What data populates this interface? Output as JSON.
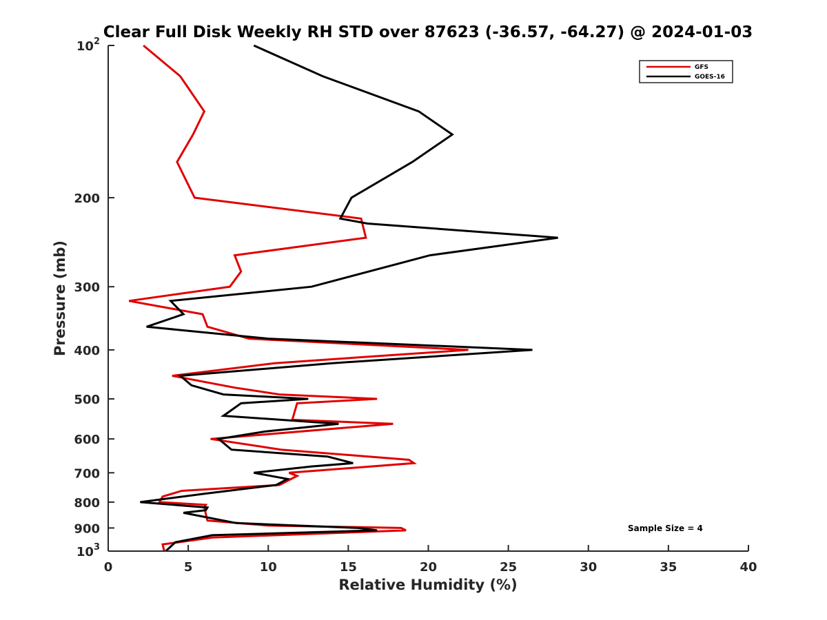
{
  "chart_data": {
    "type": "line",
    "title": "Clear Full Disk Weekly RH STD over 87623 (-36.57, -64.27) @ 2024-01-03",
    "xlabel": "Relative Humidity (%)",
    "ylabel": "Pressure (mb)",
    "xlim": [
      0,
      40
    ],
    "ylim": [
      100,
      1000
    ],
    "y_scale": "log",
    "y_reversed": true,
    "x_ticks": [
      "0",
      "5",
      "10",
      "15",
      "20",
      "25",
      "30",
      "35",
      "40"
    ],
    "y_ticks": [
      {
        "value": 100,
        "label": "10",
        "sup": "2"
      },
      {
        "value": 200,
        "label": "200"
      },
      {
        "value": 300,
        "label": "300"
      },
      {
        "value": 400,
        "label": "400"
      },
      {
        "value": 500,
        "label": "500"
      },
      {
        "value": 600,
        "label": "600"
      },
      {
        "value": 700,
        "label": "700"
      },
      {
        "value": 800,
        "label": "800"
      },
      {
        "value": 900,
        "label": "900"
      },
      {
        "value": 1000,
        "label": "10",
        "sup": "3"
      }
    ],
    "grid": false,
    "legend_position": "top-right",
    "series": [
      {
        "name": "GFS",
        "color": "#e00000",
        "points": [
          [
            2.2,
            100
          ],
          [
            4.5,
            115
          ],
          [
            6.0,
            135
          ],
          [
            5.3,
            150
          ],
          [
            4.3,
            170
          ],
          [
            5.4,
            200
          ],
          [
            15.8,
            220
          ],
          [
            16.1,
            240
          ],
          [
            7.9,
            260
          ],
          [
            8.3,
            280
          ],
          [
            7.6,
            300
          ],
          [
            1.3,
            320
          ],
          [
            5.9,
            340
          ],
          [
            6.2,
            360
          ],
          [
            8.8,
            380
          ],
          [
            22.5,
            400
          ],
          [
            10.4,
            425
          ],
          [
            4.0,
            450
          ],
          [
            7.9,
            475
          ],
          [
            10.7,
            490
          ],
          [
            16.8,
            500
          ],
          [
            11.8,
            510
          ],
          [
            11.5,
            550
          ],
          [
            17.8,
            560
          ],
          [
            6.4,
            600
          ],
          [
            10.8,
            630
          ],
          [
            18.8,
            660
          ],
          [
            19.1,
            670
          ],
          [
            11.3,
            700
          ],
          [
            11.8,
            710
          ],
          [
            10.7,
            740
          ],
          [
            4.6,
            760
          ],
          [
            3.4,
            780
          ],
          [
            3.2,
            800
          ],
          [
            6.1,
            810
          ],
          [
            6.0,
            820
          ],
          [
            6.2,
            870
          ],
          [
            10.0,
            890
          ],
          [
            18.3,
            900
          ],
          [
            18.6,
            910
          ],
          [
            6.5,
            940
          ],
          [
            3.4,
            970
          ],
          [
            3.5,
            1000
          ]
        ]
      },
      {
        "name": "GOES-16",
        "color": "#000000",
        "points": [
          [
            9.1,
            100
          ],
          [
            13.4,
            115
          ],
          [
            19.4,
            135
          ],
          [
            21.5,
            150
          ],
          [
            19.0,
            170
          ],
          [
            15.2,
            200
          ],
          [
            14.5,
            220
          ],
          [
            16.2,
            225
          ],
          [
            28.1,
            240
          ],
          [
            20.1,
            260
          ],
          [
            12.7,
            300
          ],
          [
            3.9,
            320
          ],
          [
            4.7,
            340
          ],
          [
            2.4,
            360
          ],
          [
            10.0,
            380
          ],
          [
            26.5,
            400
          ],
          [
            14.0,
            425
          ],
          [
            4.5,
            450
          ],
          [
            5.2,
            470
          ],
          [
            7.2,
            490
          ],
          [
            12.5,
            500
          ],
          [
            8.3,
            510
          ],
          [
            7.2,
            540
          ],
          [
            14.4,
            560
          ],
          [
            9.8,
            580
          ],
          [
            6.9,
            600
          ],
          [
            7.7,
            630
          ],
          [
            13.7,
            650
          ],
          [
            15.3,
            670
          ],
          [
            12.7,
            680
          ],
          [
            9.1,
            700
          ],
          [
            11.2,
            720
          ],
          [
            10.5,
            740
          ],
          [
            6.0,
            770
          ],
          [
            2.0,
            800
          ],
          [
            6.2,
            820
          ],
          [
            6.1,
            830
          ],
          [
            4.7,
            840
          ],
          [
            8.0,
            880
          ],
          [
            15.6,
            900
          ],
          [
            16.8,
            910
          ],
          [
            6.5,
            930
          ],
          [
            4.2,
            960
          ],
          [
            3.6,
            1000
          ]
        ]
      }
    ],
    "legend": [
      "GFS",
      "GOES-16"
    ],
    "annotation": "Sample Size = 4"
  }
}
